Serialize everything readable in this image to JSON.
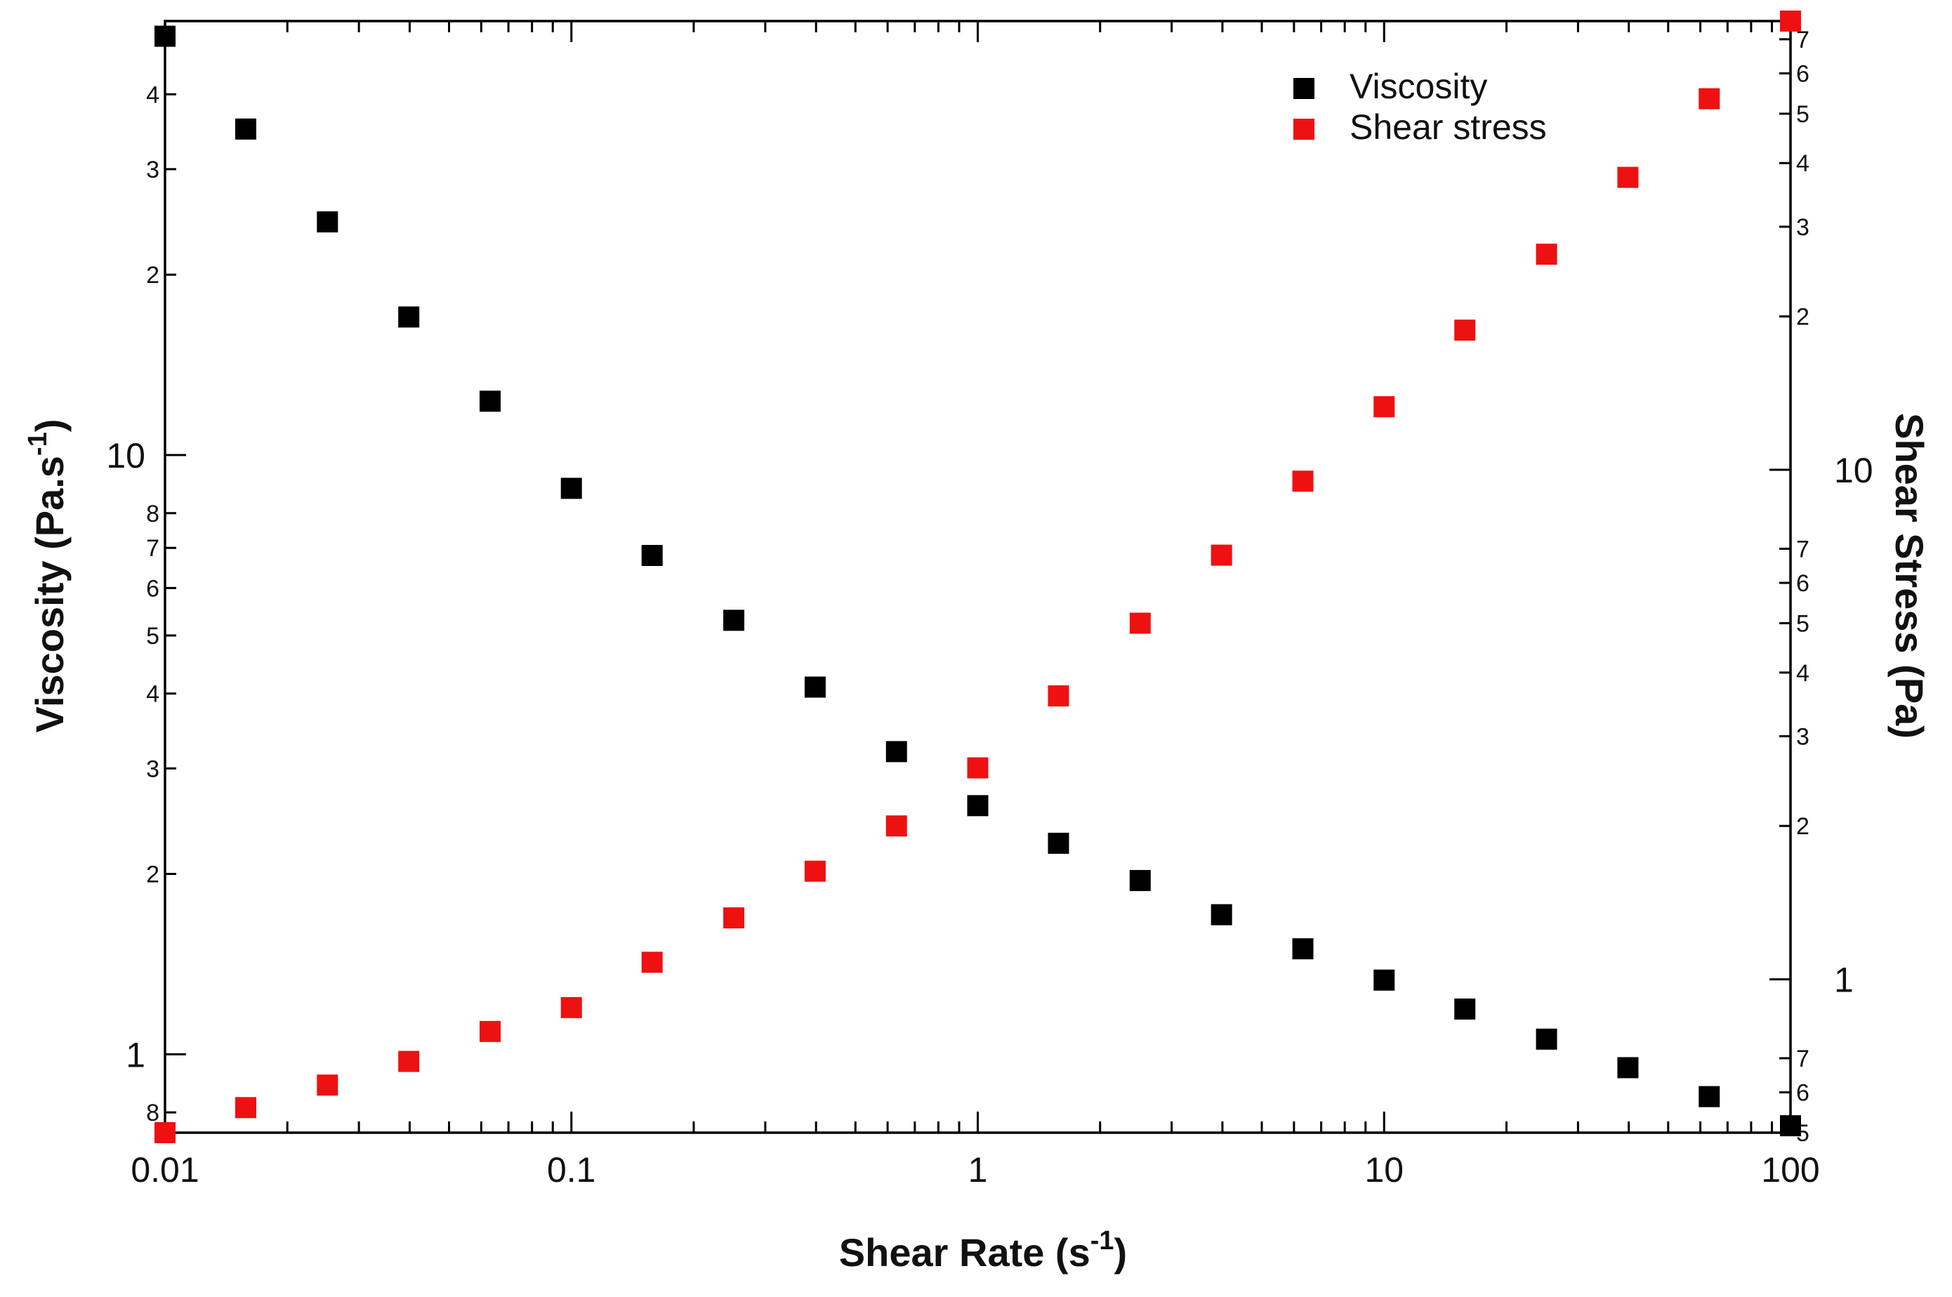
{
  "chart_data": {
    "type": "scatter",
    "title": "",
    "xlabel": "Shear Rate (s",
    "xlabel_sup": "-1",
    "xlabel_close": ")",
    "ylabel_left": "Viscosity (Pa.s",
    "ylabel_left_sup": "-1",
    "ylabel_left_close": ")",
    "ylabel_right": "Shear Stress (Pa)",
    "xscale": "log",
    "yscale_left": "log",
    "yscale_right": "log",
    "xlim": [
      0.01,
      100
    ],
    "ylim_left": [
      0.74,
      53
    ],
    "ylim_right": [
      0.5,
      76
    ],
    "x_ticks": [
      {
        "value": 0.01,
        "label": "0.01"
      },
      {
        "value": 0.1,
        "label": "0.1"
      },
      {
        "value": 1,
        "label": "1"
      },
      {
        "value": 10,
        "label": "10"
      },
      {
        "value": 100,
        "label": "100"
      }
    ],
    "left_major_ticks": [
      {
        "value": 1,
        "label": "1"
      },
      {
        "value": 10,
        "label": "10"
      }
    ],
    "left_minor_ticks": [
      {
        "value": 0.8,
        "label": "8"
      },
      {
        "value": 2,
        "label": "2"
      },
      {
        "value": 3,
        "label": "3"
      },
      {
        "value": 4,
        "label": "4"
      },
      {
        "value": 5,
        "label": "5"
      },
      {
        "value": 6,
        "label": "6"
      },
      {
        "value": 7,
        "label": "7"
      },
      {
        "value": 8,
        "label": "8"
      },
      {
        "value": 20,
        "label": "2"
      },
      {
        "value": 30,
        "label": "3"
      },
      {
        "value": 40,
        "label": "4"
      }
    ],
    "right_major_ticks": [
      {
        "value": 1,
        "label": "1"
      },
      {
        "value": 10,
        "label": "10"
      }
    ],
    "right_minor_ticks": [
      {
        "value": 0.5,
        "label": "5"
      },
      {
        "value": 0.6,
        "label": "6"
      },
      {
        "value": 0.7,
        "label": "7"
      },
      {
        "value": 2,
        "label": "2"
      },
      {
        "value": 3,
        "label": "3"
      },
      {
        "value": 4,
        "label": "4"
      },
      {
        "value": 5,
        "label": "5"
      },
      {
        "value": 6,
        "label": "6"
      },
      {
        "value": 7,
        "label": "7"
      },
      {
        "value": 20,
        "label": "2"
      },
      {
        "value": 30,
        "label": "3"
      },
      {
        "value": 40,
        "label": "4"
      },
      {
        "value": 50,
        "label": "5"
      },
      {
        "value": 60,
        "label": "6"
      },
      {
        "value": 70,
        "label": "7"
      }
    ],
    "legend_position": "top-right",
    "series": [
      {
        "name": "Viscosity",
        "axis": "left",
        "color": "#000000",
        "x": [
          0.01,
          0.0158,
          0.0251,
          0.0398,
          0.0631,
          0.1,
          0.158,
          0.251,
          0.398,
          0.631,
          1,
          1.58,
          2.51,
          3.98,
          6.31,
          10,
          15.8,
          25.1,
          39.8,
          63.1,
          100
        ],
        "y": [
          50,
          35,
          24.5,
          17,
          12.3,
          8.8,
          6.8,
          5.3,
          4.1,
          3.2,
          2.6,
          2.25,
          1.95,
          1.71,
          1.5,
          1.33,
          1.19,
          1.06,
          0.95,
          0.85,
          0.76
        ]
      },
      {
        "name": "Shear stress",
        "axis": "right",
        "color": "#ee1111",
        "x": [
          0.01,
          0.0158,
          0.0251,
          0.0398,
          0.0631,
          0.1,
          0.158,
          0.251,
          0.398,
          0.631,
          1,
          1.58,
          2.51,
          3.98,
          6.31,
          10,
          15.8,
          25.1,
          39.8,
          63.1,
          100
        ],
        "y": [
          0.5,
          0.56,
          0.62,
          0.69,
          0.79,
          0.88,
          1.08,
          1.32,
          1.63,
          2.0,
          2.6,
          3.6,
          5.0,
          6.8,
          9.5,
          13.3,
          18.8,
          26.5,
          37.5,
          53.5,
          76
        ]
      }
    ]
  }
}
